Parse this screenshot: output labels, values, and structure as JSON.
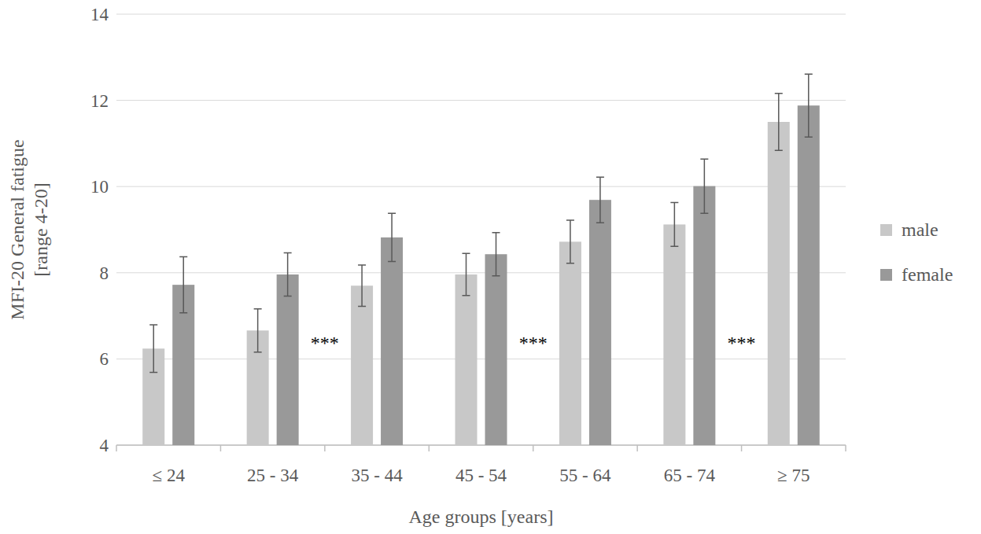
{
  "chart_data": {
    "type": "bar",
    "x_label": "Age groups [years]",
    "y_label": [
      "MFI-20 General fatigue",
      "[range 4-20]"
    ],
    "categories": [
      "≤ 24",
      "25 - 34",
      "35 - 44",
      "45 - 54",
      "55 - 64",
      "65 - 74",
      "≥ 75"
    ],
    "series": [
      {
        "name": "male",
        "color": "#c8c8c8",
        "values": [
          6.24,
          6.66,
          7.7,
          7.96,
          8.72,
          9.12,
          11.5
        ],
        "errors": [
          0.55,
          0.5,
          0.48,
          0.49,
          0.5,
          0.51,
          0.66
        ]
      },
      {
        "name": "female",
        "color": "#999999",
        "values": [
          7.72,
          7.96,
          8.82,
          8.43,
          9.69,
          10.01,
          11.88
        ],
        "errors": [
          0.65,
          0.5,
          0.56,
          0.5,
          0.53,
          0.63,
          0.73
        ]
      }
    ],
    "annotations": [
      {
        "text": "***",
        "after": "25 - 34"
      },
      {
        "text": "***",
        "after": "45 - 54"
      },
      {
        "text": "***",
        "after": "65 - 74"
      }
    ],
    "ylim": [
      4,
      14
    ],
    "yticks": [
      4,
      6,
      8,
      10,
      12,
      14
    ],
    "grid": true,
    "legend": "right"
  }
}
